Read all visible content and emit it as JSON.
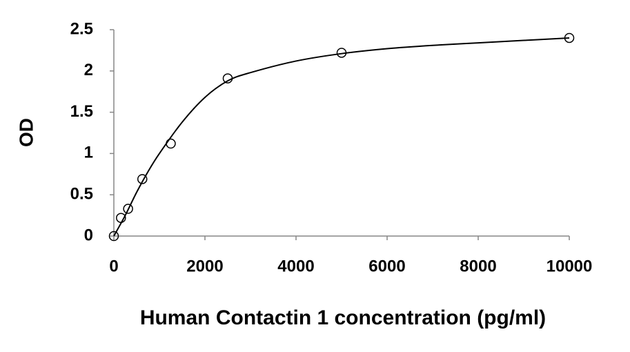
{
  "chart_data": {
    "type": "scatter",
    "x_label": "Human Contactin 1 concentration (pg/ml)",
    "y_label": "OD",
    "x": [
      0,
      156.25,
      312.5,
      625,
      1250,
      2500,
      5000,
      10000
    ],
    "series": [
      {
        "color": "#000000",
        "values": [
          0,
          0.22,
          0.33,
          0.69,
          1.12,
          1.91,
          2.22,
          2.4
        ]
      }
    ],
    "fit": {
      "color": "#000000",
      "x": [
        0,
        250,
        500,
        750,
        1000,
        1500,
        2000,
        2500,
        3000,
        4000,
        5000,
        6000,
        7000,
        8000,
        9000,
        10000
      ],
      "values": [
        0,
        0.25,
        0.53,
        0.78,
        1.0,
        1.38,
        1.68,
        1.88,
        1.98,
        2.12,
        2.21,
        2.27,
        2.31,
        2.34,
        2.37,
        2.4
      ]
    },
    "xlim": [
      0,
      10000
    ],
    "xticks": [
      0,
      2000,
      4000,
      6000,
      8000,
      10000
    ],
    "ylim": [
      0,
      2.5
    ],
    "yticks": [
      0,
      0.5,
      1,
      1.5,
      2,
      2.5
    ],
    "grid": false
  }
}
